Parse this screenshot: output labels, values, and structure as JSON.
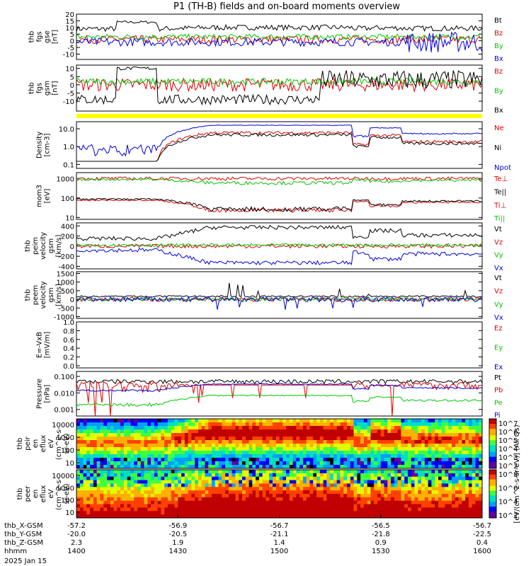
{
  "title": "P1 (TH-B) fields and on-board moments overview",
  "date": "2025 Jan 15",
  "colors": {
    "black": "#000000",
    "red": "#e00000",
    "green": "#00c800",
    "blue": "#0000e0",
    "yellow": "#ffff00"
  },
  "chart_data": [
    {
      "id": "fgs_gse",
      "type": "line",
      "ylabel_lines": [
        "thb",
        "fgs",
        "gse",
        "[nT]"
      ],
      "ylim": [
        -14,
        20
      ],
      "yticks": [
        "20",
        "15",
        "10",
        "5",
        "0",
        "-5",
        "-10"
      ],
      "series": [
        {
          "name": "Bt",
          "color": "#000000"
        },
        {
          "name": "Bz",
          "color": "#e00000"
        },
        {
          "name": "By",
          "color": "#00c800"
        },
        {
          "name": "Bx",
          "color": "#0000e0"
        }
      ]
    },
    {
      "id": "fgs_gsm",
      "type": "line",
      "ylabel_lines": [
        "thb",
        "fgs",
        "gsm",
        "[nT]"
      ],
      "ylim": [
        -16,
        12
      ],
      "yticks": [
        "10",
        "5",
        "0",
        "-5",
        "-10"
      ],
      "series": [
        {
          "name": "Bz",
          "color": "#e00000"
        },
        {
          "name": "By",
          "color": "#00c800"
        },
        {
          "name": "Bx",
          "color": "#000000"
        }
      ]
    },
    {
      "id": "density",
      "type": "line",
      "yscale": "log",
      "ylabel_lines": [
        "Density",
        "[cm-3]"
      ],
      "ylim": [
        0.06,
        25
      ],
      "yticks": [
        "10.0",
        "1.0",
        "0.1"
      ],
      "series": [
        {
          "name": "Ne",
          "color": "#e00000"
        },
        {
          "name": "Ni",
          "color": "#000000"
        },
        {
          "name": "Npot",
          "color": "#0000e0"
        }
      ]
    },
    {
      "id": "temps",
      "type": "line",
      "yscale": "log",
      "ylabel_lines": [
        "mom3",
        "[eV]"
      ],
      "ylim": [
        8,
        2000
      ],
      "yticks": [
        "1000",
        "100",
        "10"
      ],
      "series": [
        {
          "name": "Te⊥",
          "color": "#e00000"
        },
        {
          "name": "Te||",
          "color": "#000000"
        },
        {
          "name": "Ti⊥",
          "color": "#e00000"
        },
        {
          "name": "Ti||",
          "color": "#00c800"
        }
      ]
    },
    {
      "id": "peim",
      "type": "line",
      "ylabel_lines": [
        "thb",
        "peim",
        "velocity",
        "gsm",
        "[km/s]"
      ],
      "ylim": [
        -450,
        460
      ],
      "yticks": [
        "400",
        "200",
        "0",
        "-200",
        "-400"
      ],
      "series": [
        {
          "name": "Vt",
          "color": "#000000"
        },
        {
          "name": "Vz",
          "color": "#e00000"
        },
        {
          "name": "Vy",
          "color": "#00c800"
        },
        {
          "name": "Vx",
          "color": "#0000e0"
        }
      ]
    },
    {
      "id": "peem",
      "type": "line",
      "ylabel_lines": [
        "thb",
        "peem",
        "velocity",
        "gsm",
        "[km/s]"
      ],
      "ylim": [
        -1100,
        1600
      ],
      "yticks": [
        "1500",
        "1000",
        "500",
        "0",
        "-500",
        "-1000"
      ],
      "series": [
        {
          "name": "Vt",
          "color": "#000000"
        },
        {
          "name": "Vz",
          "color": "#e00000"
        },
        {
          "name": "Vy",
          "color": "#00c800"
        },
        {
          "name": "Vx",
          "color": "#0000e0"
        }
      ]
    },
    {
      "id": "efield",
      "type": "line",
      "ylabel_lines": [
        "E=-VxB",
        "[mV/m]"
      ],
      "ylim": [
        -0.05,
        1.0
      ],
      "yticks": [
        "1.0",
        "0.8",
        "0.6",
        "0.4",
        "0.2",
        "0.0"
      ],
      "series": [
        {
          "name": "Ez",
          "color": "#e00000"
        },
        {
          "name": "Ey",
          "color": "#00c800"
        },
        {
          "name": "Ex",
          "color": "#0000e0"
        }
      ]
    },
    {
      "id": "pressure",
      "type": "line",
      "yscale": "log",
      "ylabel_lines": [
        "Pressure",
        "[nPa]"
      ],
      "ylim": [
        0.0004,
        0.2
      ],
      "yticks": [
        "0.100",
        "0.010",
        "0.001"
      ],
      "series": [
        {
          "name": "Pt",
          "color": "#000000"
        },
        {
          "name": "Pb",
          "color": "#e00000"
        },
        {
          "name": "Pe",
          "color": "#00c800"
        },
        {
          "name": "Pi",
          "color": "#0000e0"
        }
      ]
    },
    {
      "id": "peir",
      "type": "heatmap",
      "ylabel_lines": [
        "thb",
        "peir",
        "en",
        "eflux",
        "eV",
        "(cm^2-s-",
        "sr-eV)"
      ],
      "yticks": [
        "10000",
        "1000",
        "100",
        "10"
      ],
      "colorbar_ticks": [
        "10^7",
        "10^6",
        "10^5",
        "10^4",
        "10^3",
        "10^2"
      ]
    },
    {
      "id": "peer",
      "type": "heatmap",
      "ylabel_lines": [
        "thb",
        "peer",
        "en",
        "eflux",
        "eV",
        "(cm^2-s-",
        "sr-eV)"
      ],
      "yticks": [
        "10000",
        "1000",
        "100",
        "10"
      ],
      "colorbar_ticks": [
        "10^8",
        "10^6",
        "10^4",
        "10^2"
      ]
    }
  ],
  "colorbar_label": "[eV/(cm^2-s-sr-eV)] (All Qs)",
  "x_axis": {
    "row_labels": [
      "thb_X-GSM",
      "thb_Y-GSM",
      "thb_Z-GSM",
      "hhmm"
    ],
    "columns": [
      {
        "x": "-57.2",
        "y": "-20.0",
        "z": "2.3",
        "hhmm": "1400"
      },
      {
        "x": "-56.9",
        "y": "-20.5",
        "z": "1.9",
        "hhmm": "1430"
      },
      {
        "x": "-56.7",
        "y": "-21.1",
        "z": "1.4",
        "hhmm": "1500"
      },
      {
        "x": "-56.5",
        "y": "-21.8",
        "z": "0.9",
        "hhmm": "1530"
      },
      {
        "x": "-56.7",
        "y": "-22.5",
        "z": "0.4",
        "hhmm": "1600"
      }
    ]
  }
}
